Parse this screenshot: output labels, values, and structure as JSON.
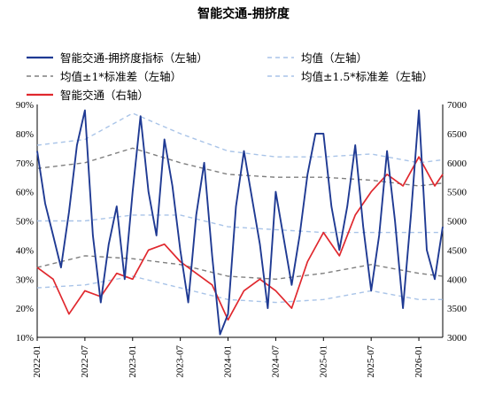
{
  "chart_data": {
    "type": "line",
    "title": "智能交通-拥挤度",
    "x_ticks": [
      "2022-01",
      "2022-07",
      "2023-01",
      "2023-07",
      "2024-01",
      "2024-07",
      "2025-01",
      "2025-07",
      "2026-01"
    ],
    "x_range": [
      "2022-01",
      "2026-04"
    ],
    "y_left": {
      "min": 0.1,
      "max": 0.9,
      "ticks": [
        "10%",
        "20%",
        "30%",
        "40%",
        "50%",
        "60%",
        "70%",
        "80%",
        "90%"
      ]
    },
    "y_right": {
      "min": 3000,
      "max": 7000,
      "ticks": [
        "3000",
        "3500",
        "4000",
        "4500",
        "5000",
        "5500",
        "6000",
        "6500",
        "7000"
      ]
    },
    "legend_position": "top",
    "grid": false,
    "colors": {
      "index": "#1f3a93",
      "mean": "#a9c4e8",
      "band1": "#7f7f7f",
      "band15": "#a9c4e8",
      "traffic": "#e0282e"
    },
    "series": [
      {
        "key": "index",
        "name": "智能交通-拥挤度指标（左轴）",
        "axis": "left",
        "x": [
          0,
          1,
          2,
          3,
          4,
          5,
          6,
          7,
          8,
          9,
          10,
          11,
          12,
          13,
          14,
          15,
          16,
          17,
          18,
          19,
          20,
          21,
          22,
          23,
          24,
          25,
          26,
          27,
          28,
          29,
          30,
          31,
          32,
          33,
          34,
          35,
          36,
          37,
          38,
          39,
          40,
          41,
          42,
          43,
          44,
          45,
          46,
          47,
          48,
          49,
          50,
          51
        ],
        "values": [
          0.74,
          0.56,
          0.45,
          0.34,
          0.53,
          0.76,
          0.88,
          0.45,
          0.22,
          0.42,
          0.55,
          0.3,
          0.6,
          0.86,
          0.6,
          0.45,
          0.78,
          0.62,
          0.4,
          0.22,
          0.52,
          0.7,
          0.38,
          0.11,
          0.18,
          0.55,
          0.74,
          0.58,
          0.42,
          0.2,
          0.6,
          0.44,
          0.28,
          0.45,
          0.66,
          0.8,
          0.8,
          0.55,
          0.4,
          0.55,
          0.76,
          0.48,
          0.26,
          0.45,
          0.74,
          0.5,
          0.2,
          0.52,
          0.88,
          0.4,
          0.3,
          0.48
        ]
      },
      {
        "key": "mean",
        "name": "均值（左轴）",
        "axis": "left",
        "x": [
          0,
          6,
          12,
          18,
          24,
          30,
          36,
          42,
          48,
          51
        ],
        "values": [
          0.5,
          0.5,
          0.52,
          0.52,
          0.48,
          0.47,
          0.46,
          0.46,
          0.46,
          0.46
        ]
      },
      {
        "key": "band_up1",
        "name": "均值±1*标准差（左轴）",
        "axis": "left",
        "x": [
          0,
          6,
          12,
          18,
          24,
          30,
          36,
          42,
          48,
          51
        ],
        "values": [
          0.68,
          0.7,
          0.75,
          0.7,
          0.66,
          0.65,
          0.65,
          0.64,
          0.62,
          0.63
        ]
      },
      {
        "key": "band_dn1",
        "name": "",
        "axis": "left",
        "x": [
          0,
          6,
          12,
          18,
          24,
          30,
          36,
          42,
          48,
          51
        ],
        "values": [
          0.34,
          0.38,
          0.37,
          0.35,
          0.31,
          0.3,
          0.32,
          0.35,
          0.32,
          0.31
        ]
      },
      {
        "key": "band_up15",
        "name": "均值±1.5*标准差（左轴）",
        "axis": "left",
        "x": [
          0,
          6,
          12,
          18,
          24,
          30,
          36,
          42,
          48,
          51
        ],
        "values": [
          0.76,
          0.78,
          0.87,
          0.8,
          0.74,
          0.72,
          0.72,
          0.73,
          0.7,
          0.71
        ]
      },
      {
        "key": "band_dn15",
        "name": "",
        "axis": "left",
        "x": [
          0,
          6,
          12,
          18,
          24,
          30,
          36,
          42,
          48,
          51
        ],
        "values": [
          0.27,
          0.28,
          0.31,
          0.27,
          0.23,
          0.22,
          0.23,
          0.26,
          0.23,
          0.23
        ]
      },
      {
        "key": "traffic",
        "name": "智能交通（右轴）",
        "axis": "right",
        "x": [
          0,
          2,
          4,
          6,
          8,
          10,
          12,
          14,
          16,
          18,
          20,
          22,
          24,
          26,
          28,
          30,
          32,
          34,
          36,
          38,
          40,
          42,
          44,
          46,
          48,
          50,
          51
        ],
        "values": [
          4200,
          4000,
          3400,
          3800,
          3700,
          4100,
          4000,
          4500,
          4600,
          4300,
          4100,
          3900,
          3300,
          3800,
          4000,
          3800,
          3500,
          4300,
          4800,
          4400,
          5100,
          5500,
          5800,
          5600,
          6100,
          5600,
          5800
        ]
      }
    ]
  }
}
